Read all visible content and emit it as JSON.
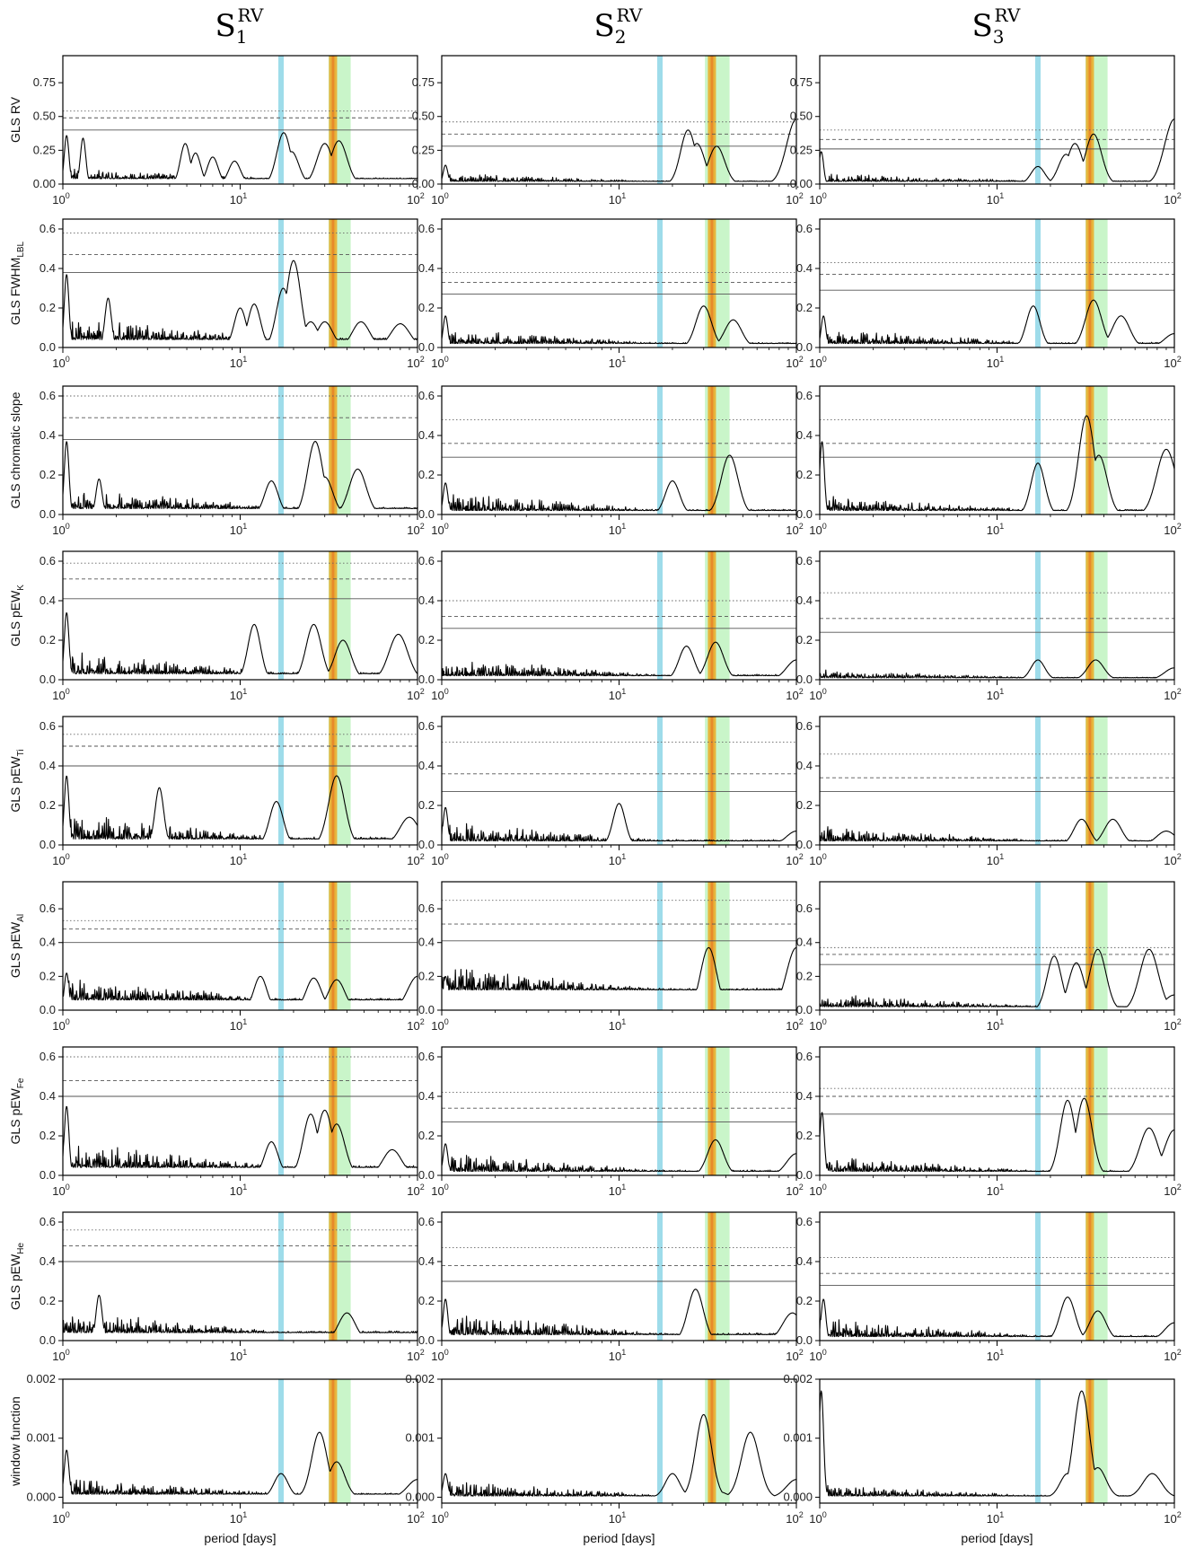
{
  "columns": [
    {
      "base": "S",
      "sub": "1",
      "sup": "RV"
    },
    {
      "base": "S",
      "sub": "2",
      "sup": "RV"
    },
    {
      "base": "S",
      "sub": "3",
      "sup": "RV"
    }
  ],
  "xlabel": "period [days]",
  "xtick_labels": [
    {
      "base": "10",
      "exp": "0"
    },
    {
      "base": "10",
      "exp": "1"
    },
    {
      "base": "10",
      "exp": "2"
    }
  ],
  "rows": [
    {
      "ylabel": "GLS RV",
      "ylabel_sub": "",
      "ylim": [
        0,
        0.95
      ],
      "yticks": [
        0,
        0.25,
        0.5,
        0.75
      ],
      "ytick_labels": [
        "0.00",
        "0.25",
        "0.50",
        "0.75"
      ]
    },
    {
      "ylabel": "GLS FWHM",
      "ylabel_sub": "LBL",
      "ylim": [
        0,
        0.65
      ],
      "yticks": [
        0,
        0.2,
        0.4,
        0.6
      ],
      "ytick_labels": [
        "0.0",
        "0.2",
        "0.4",
        "0.6"
      ]
    },
    {
      "ylabel": "GLS chromatic slope",
      "ylabel_sub": "",
      "ylim": [
        0,
        0.65
      ],
      "yticks": [
        0,
        0.2,
        0.4,
        0.6
      ],
      "ytick_labels": [
        "0.0",
        "0.2",
        "0.4",
        "0.6"
      ]
    },
    {
      "ylabel": "GLS pEW",
      "ylabel_sub": "K",
      "ylim": [
        0,
        0.65
      ],
      "yticks": [
        0,
        0.2,
        0.4,
        0.6
      ],
      "ytick_labels": [
        "0.0",
        "0.2",
        "0.4",
        "0.6"
      ]
    },
    {
      "ylabel": "GLS pEW",
      "ylabel_sub": "Ti",
      "ylim": [
        0,
        0.65
      ],
      "yticks": [
        0,
        0.2,
        0.4,
        0.6
      ],
      "ytick_labels": [
        "0.0",
        "0.2",
        "0.4",
        "0.6"
      ]
    },
    {
      "ylabel": "GLS pEW",
      "ylabel_sub": "Al",
      "ylim": [
        0,
        0.76
      ],
      "yticks": [
        0,
        0.2,
        0.4,
        0.6
      ],
      "ytick_labels": [
        "0.0",
        "0.2",
        "0.4",
        "0.6"
      ]
    },
    {
      "ylabel": "GLS pEW",
      "ylabel_sub": "Fe",
      "ylim": [
        0,
        0.65
      ],
      "yticks": [
        0,
        0.2,
        0.4,
        0.6
      ],
      "ytick_labels": [
        "0.0",
        "0.2",
        "0.4",
        "0.6"
      ]
    },
    {
      "ylabel": "GLS pEW",
      "ylabel_sub": "He",
      "ylim": [
        0,
        0.65
      ],
      "yticks": [
        0,
        0.2,
        0.4,
        0.6
      ],
      "ytick_labels": [
        "0.0",
        "0.2",
        "0.4",
        "0.6"
      ]
    },
    {
      "ylabel": "window function",
      "ylabel_sub": "",
      "ylim": [
        -0.0001,
        0.002
      ],
      "yticks": [
        0,
        0.001,
        0.002
      ],
      "ytick_labels": [
        "0.000",
        "0.001",
        "0.002"
      ]
    }
  ],
  "colors": {
    "blue_band": "#9edcea",
    "green_band": "#c9f5c9",
    "orange_band": "#e7b53c",
    "orange_core": "#e78a2a",
    "curve": "#000000",
    "threshold": "#555555"
  },
  "chart_data": {
    "type": "line",
    "layout": "grid 9 rows x 3 columns",
    "x_scale": "log",
    "xlim": [
      1,
      100
    ],
    "grid": false,
    "bands": {
      "blue_period": [
        17.0,
        17.0,
        17.0
      ],
      "green_range": [
        [
          31.5,
          42.0
        ],
        [
          30.5,
          42.0
        ],
        [
          31.5,
          42.0
        ]
      ],
      "orange_period": [
        33.4,
        33.4,
        33.4
      ]
    },
    "panels": [
      [
        {
          "thresholds": [
            0.4,
            0.49,
            0.54
          ],
          "peaks": [
            [
              1.05,
              0.36
            ],
            [
              1.3,
              0.34
            ],
            [
              4.9,
              0.3
            ],
            [
              5.6,
              0.23
            ],
            [
              7.0,
              0.2
            ],
            [
              9.3,
              0.17
            ],
            [
              17.6,
              0.38
            ],
            [
              19.5,
              0.24
            ],
            [
              30.0,
              0.3
            ],
            [
              36.0,
              0.32
            ]
          ],
          "floor": 0.04,
          "floor_noise": 0.04
        },
        {
          "thresholds": [
            0.28,
            0.37,
            0.46
          ],
          "peaks": [
            [
              1.05,
              0.14
            ],
            [
              24.5,
              0.4
            ],
            [
              27.5,
              0.3
            ],
            [
              35.5,
              0.28
            ],
            [
              100,
              0.48
            ]
          ],
          "floor": 0.02,
          "floor_noise": 0.03
        },
        {
          "thresholds": [
            0.26,
            0.33,
            0.4
          ],
          "peaks": [
            [
              1.02,
              0.24
            ],
            [
              17.0,
              0.13
            ],
            [
              24.5,
              0.22
            ],
            [
              27.5,
              0.3
            ],
            [
              35.0,
              0.37
            ],
            [
              100,
              0.48
            ]
          ],
          "floor": 0.02,
          "floor_noise": 0.03
        }
      ],
      [
        {
          "thresholds": [
            0.38,
            0.47,
            0.58
          ],
          "peaks": [
            [
              1.05,
              0.37
            ],
            [
              1.8,
              0.25
            ],
            [
              10.0,
              0.2
            ],
            [
              12.0,
              0.22
            ],
            [
              17.5,
              0.3
            ],
            [
              20.0,
              0.44
            ],
            [
              25.0,
              0.13
            ],
            [
              30.0,
              0.13
            ],
            [
              48.0,
              0.13
            ],
            [
              80.0,
              0.12
            ]
          ],
          "floor": 0.04,
          "floor_noise": 0.06
        },
        {
          "thresholds": [
            0.27,
            0.33,
            0.38
          ],
          "peaks": [
            [
              1.05,
              0.16
            ],
            [
              30.0,
              0.21
            ],
            [
              44.0,
              0.14
            ]
          ],
          "floor": 0.02,
          "floor_noise": 0.04
        },
        {
          "thresholds": [
            0.29,
            0.37,
            0.43
          ],
          "peaks": [
            [
              1.05,
              0.16
            ],
            [
              16.0,
              0.21
            ],
            [
              35.0,
              0.24
            ],
            [
              50.0,
              0.16
            ],
            [
              100,
              0.07
            ]
          ],
          "floor": 0.02,
          "floor_noise": 0.04
        }
      ],
      [
        {
          "thresholds": [
            0.38,
            0.49,
            0.6
          ],
          "peaks": [
            [
              1.05,
              0.37
            ],
            [
              1.6,
              0.18
            ],
            [
              15.0,
              0.17
            ],
            [
              26.5,
              0.37
            ],
            [
              30.0,
              0.19
            ],
            [
              46.0,
              0.23
            ]
          ],
          "floor": 0.03,
          "floor_noise": 0.06
        },
        {
          "thresholds": [
            0.29,
            0.36,
            0.48
          ],
          "peaks": [
            [
              1.05,
              0.16
            ],
            [
              20.0,
              0.17
            ],
            [
              42.0,
              0.3
            ]
          ],
          "floor": 0.02,
          "floor_noise": 0.05
        },
        {
          "thresholds": [
            0.29,
            0.36,
            0.48
          ],
          "peaks": [
            [
              1.03,
              0.37
            ],
            [
              17.0,
              0.26
            ],
            [
              32.0,
              0.5
            ],
            [
              37.5,
              0.3
            ],
            [
              90.0,
              0.33
            ]
          ],
          "floor": 0.02,
          "floor_noise": 0.04
        }
      ],
      [
        {
          "thresholds": [
            0.41,
            0.51,
            0.59
          ],
          "peaks": [
            [
              1.05,
              0.34
            ],
            [
              12.0,
              0.28
            ],
            [
              26.0,
              0.28
            ],
            [
              38.0,
              0.2
            ],
            [
              78.0,
              0.23
            ]
          ],
          "floor": 0.03,
          "floor_noise": 0.06
        },
        {
          "thresholds": [
            0.26,
            0.32,
            0.4
          ],
          "peaks": [
            [
              24.0,
              0.17
            ],
            [
              35.0,
              0.19
            ],
            [
              100,
              0.1
            ]
          ],
          "floor": 0.02,
          "floor_noise": 0.05
        },
        {
          "thresholds": [
            0.24,
            0.31,
            0.44
          ],
          "peaks": [
            [
              17.0,
              0.1
            ],
            [
              36.0,
              0.1
            ],
            [
              100,
              0.06
            ]
          ],
          "floor": 0.01,
          "floor_noise": 0.02
        }
      ],
      [
        {
          "thresholds": [
            0.4,
            0.5,
            0.56
          ],
          "peaks": [
            [
              1.05,
              0.35
            ],
            [
              3.5,
              0.29
            ],
            [
              16.0,
              0.22
            ],
            [
              35.0,
              0.35
            ],
            [
              90.0,
              0.14
            ]
          ],
          "floor": 0.03,
          "floor_noise": 0.07
        },
        {
          "thresholds": [
            0.27,
            0.36,
            0.52
          ],
          "peaks": [
            [
              1.05,
              0.19
            ],
            [
              10.0,
              0.21
            ],
            [
              100,
              0.07
            ]
          ],
          "floor": 0.02,
          "floor_noise": 0.05
        },
        {
          "thresholds": [
            0.27,
            0.34,
            0.46
          ],
          "peaks": [
            [
              30.0,
              0.13
            ],
            [
              45.0,
              0.13
            ],
            [
              90.0,
              0.07
            ]
          ],
          "floor": 0.02,
          "floor_noise": 0.04
        }
      ],
      [
        {
          "thresholds": [
            0.4,
            0.48,
            0.53
          ],
          "peaks": [
            [
              1.05,
              0.22
            ],
            [
              13.0,
              0.2
            ],
            [
              26.0,
              0.19
            ],
            [
              35.0,
              0.18
            ],
            [
              100,
              0.2
            ]
          ],
          "floor": 0.06,
          "floor_noise": 0.07
        },
        {
          "thresholds": [
            0.41,
            0.51,
            0.65
          ],
          "peaks": [
            [
              1.05,
              0.2
            ],
            [
              32.0,
              0.37
            ],
            [
              100,
              0.37
            ]
          ],
          "floor": 0.12,
          "floor_noise": 0.07
        },
        {
          "thresholds": [
            0.27,
            0.33,
            0.37
          ],
          "peaks": [
            [
              21.0,
              0.32
            ],
            [
              28.0,
              0.28
            ],
            [
              37.0,
              0.36
            ],
            [
              72.0,
              0.36
            ],
            [
              100,
              0.09
            ]
          ],
          "floor": 0.02,
          "floor_noise": 0.04
        }
      ],
      [
        {
          "thresholds": [
            0.4,
            0.48,
            0.6
          ],
          "peaks": [
            [
              1.05,
              0.35
            ],
            [
              15.0,
              0.17
            ],
            [
              25.0,
              0.31
            ],
            [
              30.0,
              0.33
            ],
            [
              35.0,
              0.26
            ],
            [
              72.0,
              0.13
            ]
          ],
          "floor": 0.04,
          "floor_noise": 0.07
        },
        {
          "thresholds": [
            0.27,
            0.34,
            0.42
          ],
          "peaks": [
            [
              1.05,
              0.16
            ],
            [
              35.0,
              0.18
            ],
            [
              100,
              0.11
            ]
          ],
          "floor": 0.02,
          "floor_noise": 0.05
        },
        {
          "thresholds": [
            0.31,
            0.4,
            0.44
          ],
          "peaks": [
            [
              1.03,
              0.32
            ],
            [
              25.0,
              0.38
            ],
            [
              31.0,
              0.39
            ],
            [
              72.0,
              0.24
            ],
            [
              100,
              0.23
            ]
          ],
          "floor": 0.02,
          "floor_noise": 0.04
        }
      ],
      [
        {
          "thresholds": [
            0.4,
            0.48,
            0.56
          ],
          "peaks": [
            [
              1.6,
              0.23
            ],
            [
              40.0,
              0.14
            ]
          ],
          "floor": 0.04,
          "floor_noise": 0.06
        },
        {
          "thresholds": [
            0.3,
            0.38,
            0.47
          ],
          "peaks": [
            [
              1.05,
              0.21
            ],
            [
              27.0,
              0.26
            ],
            [
              95.0,
              0.14
            ]
          ],
          "floor": 0.03,
          "floor_noise": 0.06
        },
        {
          "thresholds": [
            0.28,
            0.34,
            0.42
          ],
          "peaks": [
            [
              1.05,
              0.21
            ],
            [
              25.0,
              0.22
            ],
            [
              37.0,
              0.15
            ],
            [
              100,
              0.09
            ]
          ],
          "floor": 0.02,
          "floor_noise": 0.05
        }
      ],
      [
        {
          "thresholds": [],
          "peaks": [
            [
              1.05,
              0.0008
            ],
            [
              17.0,
              0.0004
            ],
            [
              28.0,
              0.0011
            ],
            [
              35.0,
              0.0006
            ],
            [
              100,
              0.0003
            ]
          ],
          "floor": 5e-05,
          "floor_noise": 0.00015
        },
        {
          "thresholds": [],
          "peaks": [
            [
              1.05,
              0.0004
            ],
            [
              20.0,
              0.0004
            ],
            [
              30.0,
              0.0014
            ],
            [
              36.0,
              0.0001
            ],
            [
              55.0,
              0.0011
            ],
            [
              100,
              0.0003
            ]
          ],
          "floor": 2e-05,
          "floor_noise": 0.00015
        },
        {
          "thresholds": [],
          "peaks": [
            [
              1.02,
              0.0018
            ],
            [
              25.0,
              0.0004
            ],
            [
              30.0,
              0.0018
            ],
            [
              34.5,
              0.0001
            ],
            [
              37.0,
              0.0005
            ],
            [
              75.0,
              0.0004
            ]
          ],
          "floor": 2e-05,
          "floor_noise": 0.0001
        }
      ]
    ]
  }
}
